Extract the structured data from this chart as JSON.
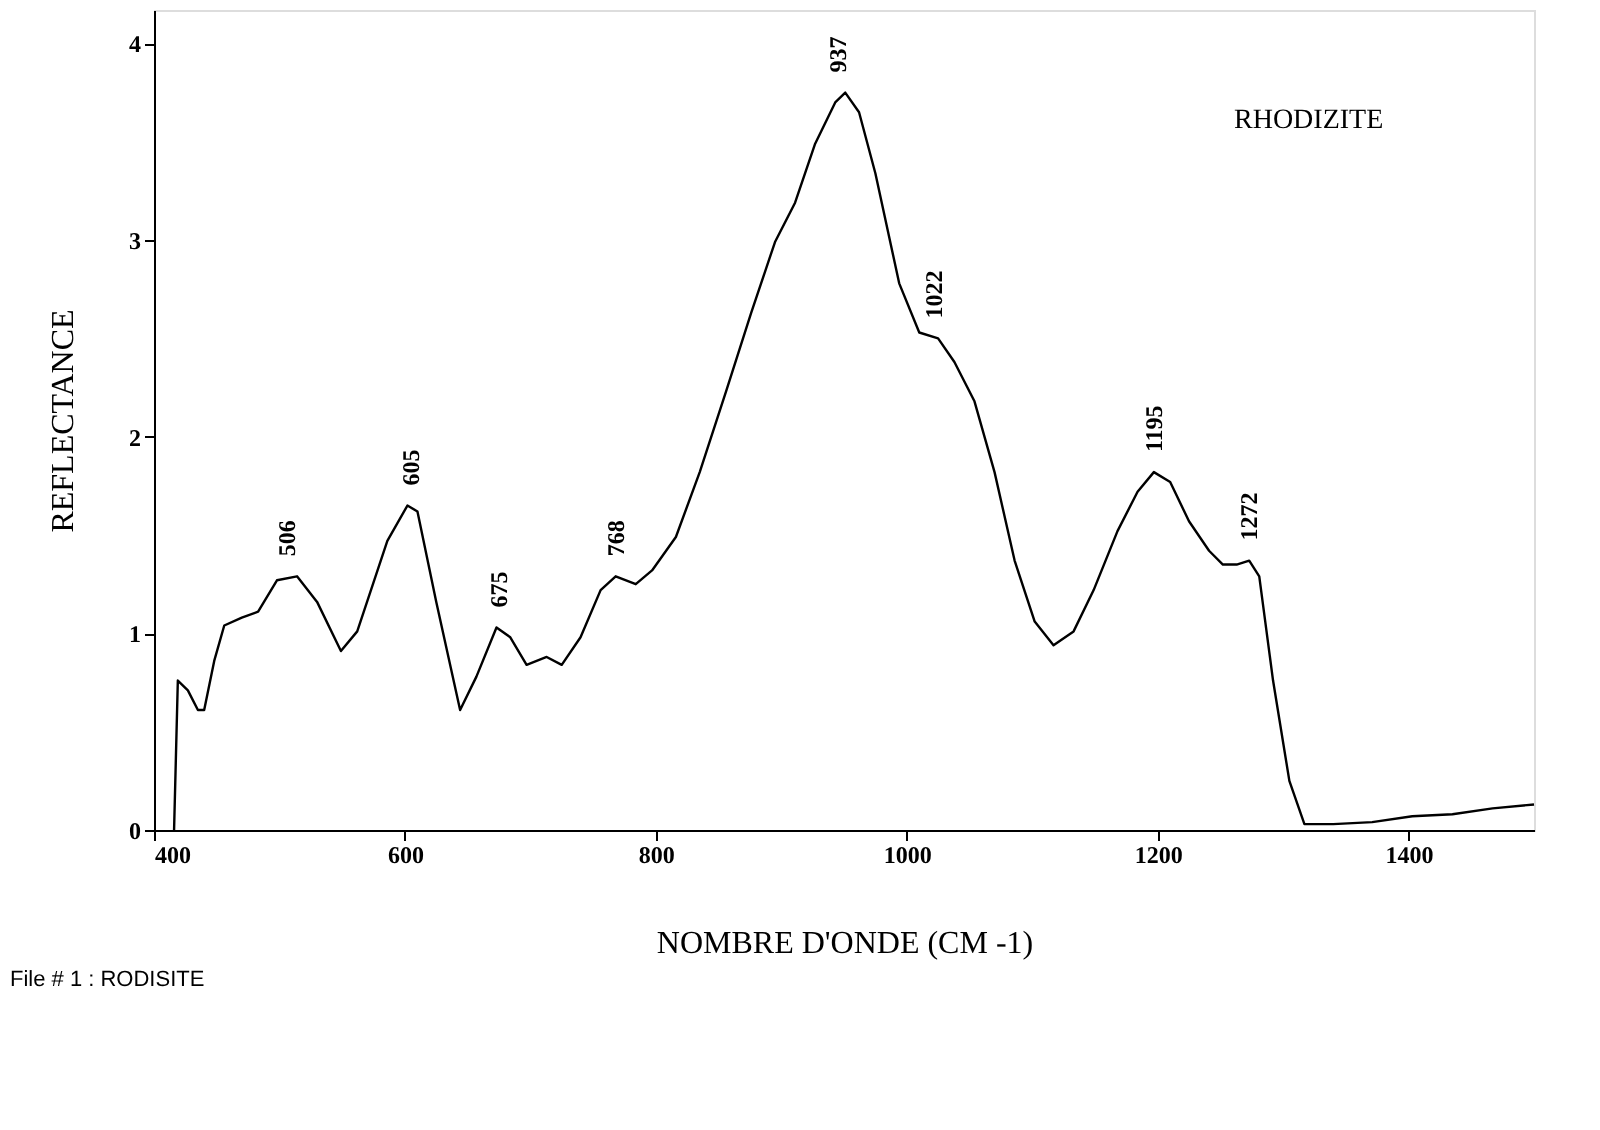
{
  "chart_data": {
    "type": "line",
    "title": "RHODIZITE",
    "xlabel": "NOMBRE D'ONDE (CM -1)",
    "ylabel": "REFLECTANCE",
    "xlim": [
      400,
      1500
    ],
    "ylim": [
      0,
      4.17
    ],
    "xticks": [
      400,
      600,
      800,
      1000,
      1200,
      1400
    ],
    "yticks": [
      0,
      1,
      2,
      3,
      4
    ],
    "grid": false,
    "marker": "none",
    "line_style": "solid",
    "x": [
      416,
      419,
      427,
      435,
      440,
      448,
      456,
      470,
      483,
      498,
      514,
      530,
      549,
      562,
      586,
      602,
      610,
      625,
      644,
      657,
      673,
      684,
      697,
      713,
      725,
      740,
      756,
      768,
      784,
      797,
      816,
      835,
      856,
      876,
      895,
      911,
      927,
      943,
      951,
      962,
      975,
      994,
      1010,
      1025,
      1038,
      1054,
      1070,
      1086,
      1102,
      1117,
      1133,
      1149,
      1168,
      1184,
      1197,
      1210,
      1225,
      1241,
      1252,
      1263,
      1273,
      1281,
      1292,
      1305,
      1317,
      1340,
      1371,
      1403,
      1435,
      1467,
      1500
    ],
    "series": [
      {
        "color": "#000000",
        "values": [
          0,
          0.76,
          0.71,
          0.61,
          0.61,
          0.86,
          1.04,
          1.08,
          1.11,
          1.27,
          1.29,
          1.16,
          0.91,
          1.01,
          1.47,
          1.65,
          1.62,
          1.16,
          0.61,
          0.78,
          1.03,
          0.98,
          0.84,
          0.88,
          0.84,
          0.98,
          1.22,
          1.29,
          1.25,
          1.32,
          1.49,
          1.82,
          2.23,
          2.63,
          2.99,
          3.19,
          3.49,
          3.7,
          3.75,
          3.65,
          3.34,
          2.78,
          2.53,
          2.5,
          2.38,
          2.18,
          1.82,
          1.37,
          1.06,
          0.94,
          1.01,
          1.22,
          1.52,
          1.72,
          1.82,
          1.77,
          1.57,
          1.42,
          1.35,
          1.35,
          1.37,
          1.29,
          0.76,
          0.25,
          0.03,
          0.03,
          0.04,
          0.07,
          0.08,
          0.11,
          0.13
        ]
      }
    ],
    "annotations": [
      {
        "text": "506",
        "x": 506,
        "y": 1.29
      },
      {
        "text": "605",
        "x": 605,
        "y": 1.65
      },
      {
        "text": "675",
        "x": 675,
        "y": 1.03
      },
      {
        "text": "768",
        "x": 768,
        "y": 1.29
      },
      {
        "text": "937",
        "x": 945,
        "y": 3.75
      },
      {
        "text": "1022",
        "x": 1022,
        "y": 2.5
      },
      {
        "text": "1195",
        "x": 1197,
        "y": 1.82
      },
      {
        "text": "1272",
        "x": 1273,
        "y": 1.37
      },
      "File # 1 : RODISITE"
    ]
  }
}
